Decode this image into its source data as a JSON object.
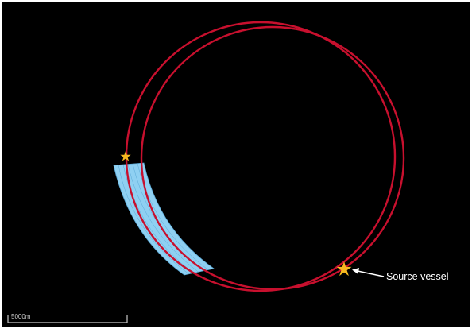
{
  "annotation": {
    "source_label": "Source vessel"
  },
  "scale_bar": {
    "label": "5000m"
  },
  "colors": {
    "background": "#000000",
    "track": "#c8102e",
    "coverage": "#8fd0f2",
    "coverage_edge": "#5aa9d6",
    "marker": "#f5b820",
    "annotation": "#ffffff",
    "scale": "#c8c8c8"
  }
}
